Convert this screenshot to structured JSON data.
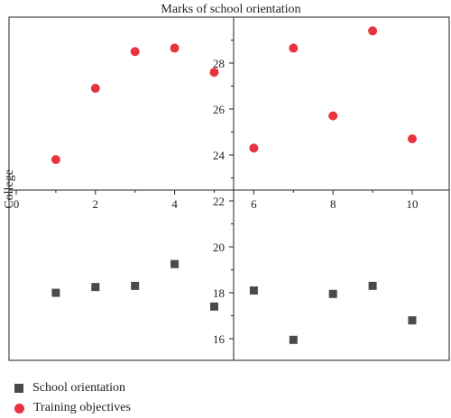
{
  "chart_data": {
    "type": "scatter",
    "title": "Marks of school orientation",
    "ylabel": "College",
    "xlim": [
      0,
      11
    ],
    "x_ticks": [
      0,
      2,
      4,
      6,
      8,
      10
    ],
    "upper_ylim": [
      22.4,
      30
    ],
    "upper_y_ticks": [
      24,
      26,
      28
    ],
    "lower_ylim": [
      15,
      22
    ],
    "lower_y_ticks": [
      16,
      18,
      20,
      22
    ],
    "grid": false,
    "legend_position": "bottom-left",
    "colors": {
      "school_orientation": "#4a4a4a",
      "training_objectives": "#e8343f"
    },
    "series": [
      {
        "name": "School orientation",
        "marker": "square",
        "x": [
          1,
          2,
          3,
          4,
          5,
          6,
          7,
          8,
          9,
          10
        ],
        "y": [
          18.0,
          18.25,
          18.3,
          19.25,
          17.4,
          18.1,
          15.95,
          17.95,
          18.3,
          16.8
        ]
      },
      {
        "name": "Training objectives",
        "marker": "circle",
        "x": [
          1,
          2,
          3,
          4,
          5,
          6,
          7,
          8,
          9,
          10
        ],
        "y": [
          23.8,
          26.9,
          28.5,
          28.65,
          27.6,
          24.3,
          28.65,
          25.7,
          29.4,
          24.7
        ]
      }
    ]
  }
}
